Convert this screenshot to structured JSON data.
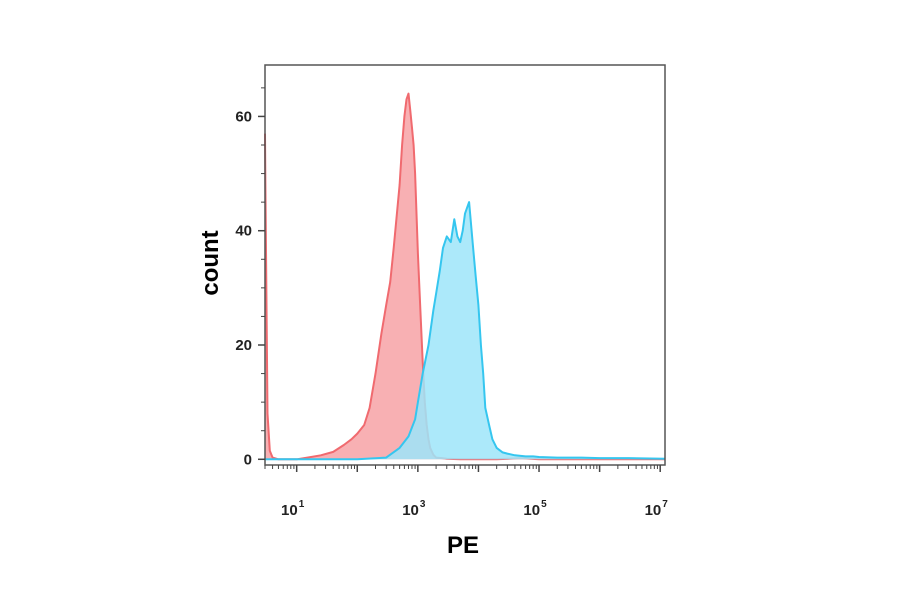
{
  "chart_data": {
    "type": "area",
    "xlabel": "PE",
    "ylabel": "count",
    "xscale": "log",
    "xlim": [
      3,
      12000000
    ],
    "ylim": [
      -1,
      69
    ],
    "yticks": [
      {
        "value": 0,
        "label": "0"
      },
      {
        "value": 20,
        "label": "20"
      },
      {
        "value": 40,
        "label": "40"
      },
      {
        "value": 60,
        "label": "60"
      }
    ],
    "xticks": [
      {
        "value": 10,
        "base": "10",
        "exp": "1"
      },
      {
        "value": 1000,
        "base": "10",
        "exp": "3"
      },
      {
        "value": 100000,
        "base": "10",
        "exp": "5"
      },
      {
        "value": 10000000,
        "base": "10",
        "exp": "7"
      }
    ],
    "grid": false,
    "legend": "none",
    "series": [
      {
        "color": "#f06a6f",
        "fill": "#f7a2a6",
        "x": [
          3,
          3.05,
          3.3,
          3.6,
          4,
          5,
          7,
          10,
          15,
          25,
          40,
          60,
          80,
          100,
          130,
          160,
          200,
          250,
          300,
          350,
          400,
          500,
          550,
          600,
          650,
          700,
          750,
          800,
          850,
          900,
          1000,
          1100,
          1200,
          1300,
          1400,
          1500,
          1600,
          1800,
          2000,
          2500,
          3000,
          5000,
          10000,
          20000,
          50000,
          100000,
          1000000,
          12000000
        ],
        "y": [
          57,
          48,
          8,
          1.5,
          0.3,
          0,
          0,
          0,
          0.3,
          0.7,
          1.3,
          2.5,
          3.5,
          4.5,
          6,
          9,
          15,
          22,
          27,
          31,
          37,
          48,
          55,
          60,
          63,
          64,
          61,
          58,
          55,
          50,
          36,
          26,
          17,
          10,
          6,
          3.5,
          2,
          0.8,
          0.3,
          0.2,
          0.1,
          0,
          0,
          0,
          0.2,
          0,
          0,
          0
        ]
      },
      {
        "color": "#35c6ef",
        "fill": "#9ee5f9",
        "x": [
          3,
          100,
          300,
          500,
          700,
          900,
          1000,
          1200,
          1500,
          1800,
          2000,
          2300,
          2600,
          3000,
          3500,
          4000,
          4500,
          5000,
          5500,
          6000,
          7000,
          8000,
          9000,
          10000,
          11000,
          12000,
          13000,
          15000,
          17000,
          20000,
          25000,
          30000,
          40000,
          50000,
          60000,
          80000,
          100000,
          200000,
          500000,
          1000000,
          3000000,
          12000000
        ],
        "y": [
          0,
          0,
          0.3,
          2,
          4,
          7,
          10,
          15,
          20,
          26,
          29,
          33,
          37,
          39,
          38,
          42,
          39,
          38,
          40,
          43,
          45,
          38,
          32,
          27,
          20,
          15,
          9,
          6,
          3.5,
          2,
          1.2,
          1,
          0.7,
          0.6,
          0.5,
          0.5,
          0.4,
          0.3,
          0.3,
          0.2,
          0.2,
          0.1
        ]
      }
    ]
  }
}
